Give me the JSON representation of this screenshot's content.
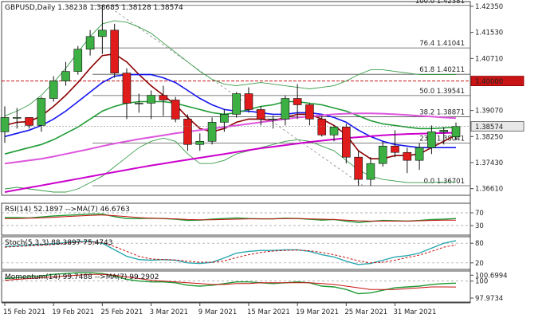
{
  "chart_data": [
    {
      "type": "candlestick",
      "title": "GBPUSD,Daily  1.38238 1.38685 1.38128 1.38574",
      "ylim": [
        1.364,
        1.425
      ],
      "y_ticks": [
        "1.42350",
        "1.41530",
        "1.40710",
        "1.39070",
        "1.38250",
        "1.37430",
        "1.36610"
      ],
      "x_ticks": [
        "15 Feb 2021",
        "19 Feb 2021",
        "25 Feb 2021",
        "3 Mar 2021",
        "9 Mar 2021",
        "15 Mar 2021",
        "19 Mar 2021",
        "25 Mar 2021",
        "31 Mar 2021"
      ],
      "x_tick_index": [
        0,
        4,
        8,
        12,
        16,
        20,
        24,
        28,
        32
      ],
      "last_price_label": "1.38574",
      "key_level_label": "1.40000",
      "key_level": 1.4,
      "colors": {
        "up": "#3cb043",
        "down": "#e01b1b",
        "key_level": "#c81414",
        "last_price_box": "#e8e8e8"
      },
      "candles": [
        {
          "o": 1.384,
          "h": 1.392,
          "l": 1.3805,
          "c": 1.3885
        },
        {
          "o": 1.3885,
          "h": 1.3915,
          "l": 1.385,
          "c": 1.3885
        },
        {
          "o": 1.3885,
          "h": 1.388,
          "l": 1.385,
          "c": 1.386
        },
        {
          "o": 1.386,
          "h": 1.395,
          "l": 1.384,
          "c": 1.3945
        },
        {
          "o": 1.3945,
          "h": 1.4015,
          "l": 1.3935,
          "c": 1.4
        },
        {
          "o": 1.4,
          "h": 1.406,
          "l": 1.3985,
          "c": 1.403
        },
        {
          "o": 1.403,
          "h": 1.411,
          "l": 1.402,
          "c": 1.41
        },
        {
          "o": 1.41,
          "h": 1.416,
          "l": 1.408,
          "c": 1.414
        },
        {
          "o": 1.414,
          "h": 1.4238,
          "l": 1.4085,
          "c": 1.416
        },
        {
          "o": 1.416,
          "h": 1.418,
          "l": 1.401,
          "c": 1.4025
        },
        {
          "o": 1.4025,
          "h": 1.404,
          "l": 1.388,
          "c": 1.393
        },
        {
          "o": 1.393,
          "h": 1.396,
          "l": 1.39,
          "c": 1.393
        },
        {
          "o": 1.393,
          "h": 1.397,
          "l": 1.388,
          "c": 1.3955
        },
        {
          "o": 1.3955,
          "h": 1.3985,
          "l": 1.389,
          "c": 1.394
        },
        {
          "o": 1.394,
          "h": 1.395,
          "l": 1.387,
          "c": 1.388
        },
        {
          "o": 1.388,
          "h": 1.3895,
          "l": 1.378,
          "c": 1.38
        },
        {
          "o": 1.38,
          "h": 1.3835,
          "l": 1.378,
          "c": 1.381
        },
        {
          "o": 1.381,
          "h": 1.3885,
          "l": 1.38,
          "c": 1.387
        },
        {
          "o": 1.387,
          "h": 1.391,
          "l": 1.384,
          "c": 1.3895
        },
        {
          "o": 1.3895,
          "h": 1.3965,
          "l": 1.3885,
          "c": 1.396
        },
        {
          "o": 1.396,
          "h": 1.398,
          "l": 1.39,
          "c": 1.391
        },
        {
          "o": 1.391,
          "h": 1.392,
          "l": 1.386,
          "c": 1.388
        },
        {
          "o": 1.388,
          "h": 1.389,
          "l": 1.385,
          "c": 1.388
        },
        {
          "o": 1.388,
          "h": 1.3955,
          "l": 1.386,
          "c": 1.3945
        },
        {
          "o": 1.3945,
          "h": 1.399,
          "l": 1.388,
          "c": 1.3925
        },
        {
          "o": 1.3925,
          "h": 1.393,
          "l": 1.386,
          "c": 1.388
        },
        {
          "o": 1.388,
          "h": 1.389,
          "l": 1.3825,
          "c": 1.383
        },
        {
          "o": 1.383,
          "h": 1.386,
          "l": 1.381,
          "c": 1.3855
        },
        {
          "o": 1.3855,
          "h": 1.3865,
          "l": 1.374,
          "c": 1.376
        },
        {
          "o": 1.376,
          "h": 1.378,
          "l": 1.367,
          "c": 1.369
        },
        {
          "o": 1.369,
          "h": 1.376,
          "l": 1.367,
          "c": 1.374
        },
        {
          "o": 1.374,
          "h": 1.381,
          "l": 1.373,
          "c": 1.3795
        },
        {
          "o": 1.3795,
          "h": 1.3845,
          "l": 1.376,
          "c": 1.3775
        },
        {
          "o": 1.3775,
          "h": 1.379,
          "l": 1.371,
          "c": 1.375
        },
        {
          "o": 1.375,
          "h": 1.3805,
          "l": 1.372,
          "c": 1.379
        },
        {
          "o": 1.379,
          "h": 1.386,
          "l": 1.377,
          "c": 1.384
        },
        {
          "o": 1.384,
          "h": 1.3855,
          "l": 1.38,
          "c": 1.3845
        },
        {
          "o": 1.3824,
          "h": 1.3869,
          "l": 1.3813,
          "c": 1.3857
        }
      ],
      "moving_averages": [
        {
          "color": "#8b0000",
          "values": [
            1.386,
            1.387,
            1.3872,
            1.389,
            1.392,
            1.3955,
            1.3995,
            1.404,
            1.408,
            1.4085,
            1.406,
            1.402,
            1.3985,
            1.3955,
            1.3925,
            1.3885,
            1.385,
            1.384,
            1.385,
            1.387,
            1.388,
            1.388,
            1.3875,
            1.3885,
            1.3895,
            1.3895,
            1.388,
            1.386,
            1.383,
            1.378,
            1.3755,
            1.3755,
            1.3765,
            1.3765,
            1.377,
            1.379,
            1.381,
            1.383
          ]
        },
        {
          "color": "#1515ee",
          "values": [
            1.3825,
            1.3835,
            1.3845,
            1.386,
            1.388,
            1.3905,
            1.3935,
            1.3965,
            1.3995,
            1.4015,
            1.402,
            1.402,
            1.402,
            1.401,
            1.3995,
            1.397,
            1.3945,
            1.3925,
            1.391,
            1.3905,
            1.3905,
            1.39,
            1.3895,
            1.3895,
            1.39,
            1.39,
            1.3895,
            1.3885,
            1.387,
            1.3845,
            1.3825,
            1.381,
            1.38,
            1.3795,
            1.379,
            1.379,
            1.379,
            1.379
          ]
        },
        {
          "color": "#1e9b34",
          "values": [
            1.377,
            1.378,
            1.379,
            1.38,
            1.3815,
            1.3835,
            1.3855,
            1.388,
            1.3905,
            1.392,
            1.393,
            1.3935,
            1.3935,
            1.3935,
            1.393,
            1.392,
            1.391,
            1.39,
            1.3895,
            1.39,
            1.391,
            1.392,
            1.3925,
            1.3935,
            1.3935,
            1.393,
            1.3925,
            1.3915,
            1.3905,
            1.389,
            1.3875,
            1.3865,
            1.386,
            1.3855,
            1.385,
            1.385,
            1.3852,
            1.3855
          ]
        },
        {
          "color": "#dd55dd",
          "values": [
            1.374,
            1.3745,
            1.375,
            1.3755,
            1.3762,
            1.377,
            1.3778,
            1.3786,
            1.3795,
            1.3803,
            1.381,
            1.3817,
            1.3823,
            1.3829,
            1.3835,
            1.384,
            1.3845,
            1.385,
            1.3855,
            1.386,
            1.3865,
            1.387,
            1.3875,
            1.388,
            1.3885,
            1.3888,
            1.3892,
            1.3895,
            1.3897,
            1.3898,
            1.3898,
            1.3897,
            1.3895,
            1.3893,
            1.389,
            1.3888,
            1.3885,
            1.3883
          ]
        },
        {
          "color": "#cc00cc",
          "values": [
            1.365,
            1.3657,
            1.3664,
            1.3671,
            1.3678,
            1.3685,
            1.3692,
            1.3699,
            1.3706,
            1.3713,
            1.372,
            1.3727,
            1.3734,
            1.374,
            1.3746,
            1.3752,
            1.3758,
            1.3764,
            1.377,
            1.3776,
            1.3782,
            1.3788,
            1.3793,
            1.3798,
            1.3803,
            1.3808,
            1.3812,
            1.3816,
            1.382,
            1.3823,
            1.3826,
            1.3829,
            1.3831,
            1.3833,
            1.3834,
            1.3835,
            1.3836,
            1.3837
          ]
        }
      ],
      "bollinger": {
        "color": "#3a9d4a",
        "upper": [
          1.389,
          1.3905,
          1.3925,
          1.3955,
          1.3995,
          1.404,
          1.409,
          1.414,
          1.418,
          1.419,
          1.4185,
          1.417,
          1.415,
          1.412,
          1.409,
          1.406,
          1.403,
          1.4005,
          1.399,
          1.3985,
          1.399,
          1.3995,
          1.399,
          1.3985,
          1.398,
          1.3975,
          1.398,
          1.3985,
          1.4,
          1.402,
          1.4035,
          1.4035,
          1.403,
          1.4025,
          1.402,
          1.402,
          1.402,
          1.402
        ],
        "lower": [
          1.366,
          1.3665,
          1.366,
          1.3655,
          1.365,
          1.365,
          1.366,
          1.368,
          1.37,
          1.373,
          1.376,
          1.379,
          1.381,
          1.382,
          1.381,
          1.377,
          1.374,
          1.374,
          1.375,
          1.377,
          1.378,
          1.379,
          1.38,
          1.381,
          1.3815,
          1.381,
          1.3795,
          1.378,
          1.375,
          1.372,
          1.37,
          1.369,
          1.3685,
          1.368,
          1.368,
          1.368,
          1.3682,
          1.3682
        ]
      },
      "fibonacci": {
        "color": "#555555",
        "levels": [
          {
            "label": "100.0 1.42381",
            "value": 1.42381
          },
          {
            "label": "76.4 1.41041",
            "value": 1.41041
          },
          {
            "label": "61.8 1.40211",
            "value": 1.40211
          },
          {
            "label": "50.0 1.39541",
            "value": 1.39541
          },
          {
            "label": "38.2 1.38871",
            "value": 1.38871
          },
          {
            "label": "23.6 1.38041",
            "value": 1.38041
          },
          {
            "label": "0.0 1.36701",
            "value": 1.36701
          }
        ]
      }
    },
    {
      "type": "line",
      "title": "RSI(14) 52.1897 -->MA(7) 46.6763",
      "ylim": [
        0,
        100
      ],
      "y_ticks": [
        "70",
        "30"
      ],
      "y_tick_values": [
        70,
        30
      ],
      "levels": [
        70,
        30
      ],
      "series": [
        {
          "color": "#1e9b34",
          "values": [
            55,
            55,
            54,
            57,
            60,
            62,
            64,
            66,
            66,
            58,
            52,
            52,
            53,
            52,
            50,
            46,
            47,
            50,
            52,
            54,
            52,
            51,
            51,
            53,
            52,
            50,
            47,
            49,
            44,
            40,
            43,
            46,
            45,
            44,
            46,
            49,
            50,
            52
          ]
        },
        {
          "color": "#c81414",
          "values": [
            52,
            52,
            53,
            54,
            56,
            58,
            60,
            62,
            63,
            61,
            58,
            55,
            53,
            52,
            51,
            49,
            48,
            48,
            49,
            50,
            51,
            51,
            51,
            52,
            52,
            51,
            50,
            49,
            47,
            45,
            44,
            44,
            44,
            44,
            45,
            46,
            47,
            47
          ]
        }
      ]
    },
    {
      "type": "line",
      "title": "Stoch(5,3,3) 88.3897 75.4743",
      "ylim": [
        0,
        100
      ],
      "y_ticks": [
        "80",
        "20"
      ],
      "y_tick_values": [
        80,
        20
      ],
      "levels": [
        80,
        20
      ],
      "series": [
        {
          "color": "#2aa8b0",
          "values": [
            70,
            72,
            74,
            76,
            78,
            82,
            85,
            86,
            80,
            60,
            40,
            30,
            28,
            30,
            28,
            20,
            18,
            22,
            35,
            50,
            55,
            58,
            58,
            60,
            60,
            55,
            45,
            38,
            25,
            15,
            18,
            28,
            38,
            42,
            50,
            65,
            80,
            88
          ]
        },
        {
          "color": "#c81414",
          "values": [
            68,
            70,
            72,
            74,
            76,
            80,
            83,
            84,
            82,
            70,
            55,
            40,
            32,
            30,
            29,
            25,
            22,
            22,
            26,
            36,
            45,
            52,
            56,
            58,
            59,
            57,
            52,
            45,
            36,
            26,
            20,
            22,
            28,
            36,
            44,
            55,
            68,
            75
          ]
        }
      ]
    },
    {
      "type": "line",
      "title": "Momentum(14) 99.7488 -->MA(7) 99.2902",
      "ylim": [
        97.5,
        101.2
      ],
      "y_ticks": [
        "100.6994",
        "100",
        "97.9734"
      ],
      "y_tick_values": [
        100.6994,
        100,
        97.9734
      ],
      "levels": [
        100
      ],
      "series": [
        {
          "color": "#1e9b34",
          "values": [
            100.3,
            100.4,
            100.5,
            100.6,
            100.8,
            100.9,
            101.0,
            101.0,
            100.9,
            100.6,
            100.2,
            100.0,
            99.9,
            99.9,
            99.8,
            99.5,
            99.4,
            99.5,
            99.7,
            99.9,
            99.9,
            99.8,
            99.7,
            99.8,
            99.9,
            99.8,
            99.4,
            99.3,
            99.0,
            98.5,
            98.6,
            98.9,
            99.2,
            99.3,
            99.4,
            99.6,
            99.7,
            99.75
          ]
        },
        {
          "color": "#c81414",
          "values": [
            100.1,
            100.2,
            100.3,
            100.4,
            100.5,
            100.6,
            100.7,
            100.8,
            100.8,
            100.7,
            100.5,
            100.3,
            100.1,
            100.0,
            99.9,
            99.8,
            99.7,
            99.6,
            99.6,
            99.7,
            99.7,
            99.8,
            99.8,
            99.8,
            99.8,
            99.8,
            99.7,
            99.6,
            99.4,
            99.2,
            99.0,
            99.0,
            99.0,
            99.1,
            99.2,
            99.3,
            99.3,
            99.29
          ]
        }
      ]
    }
  ]
}
